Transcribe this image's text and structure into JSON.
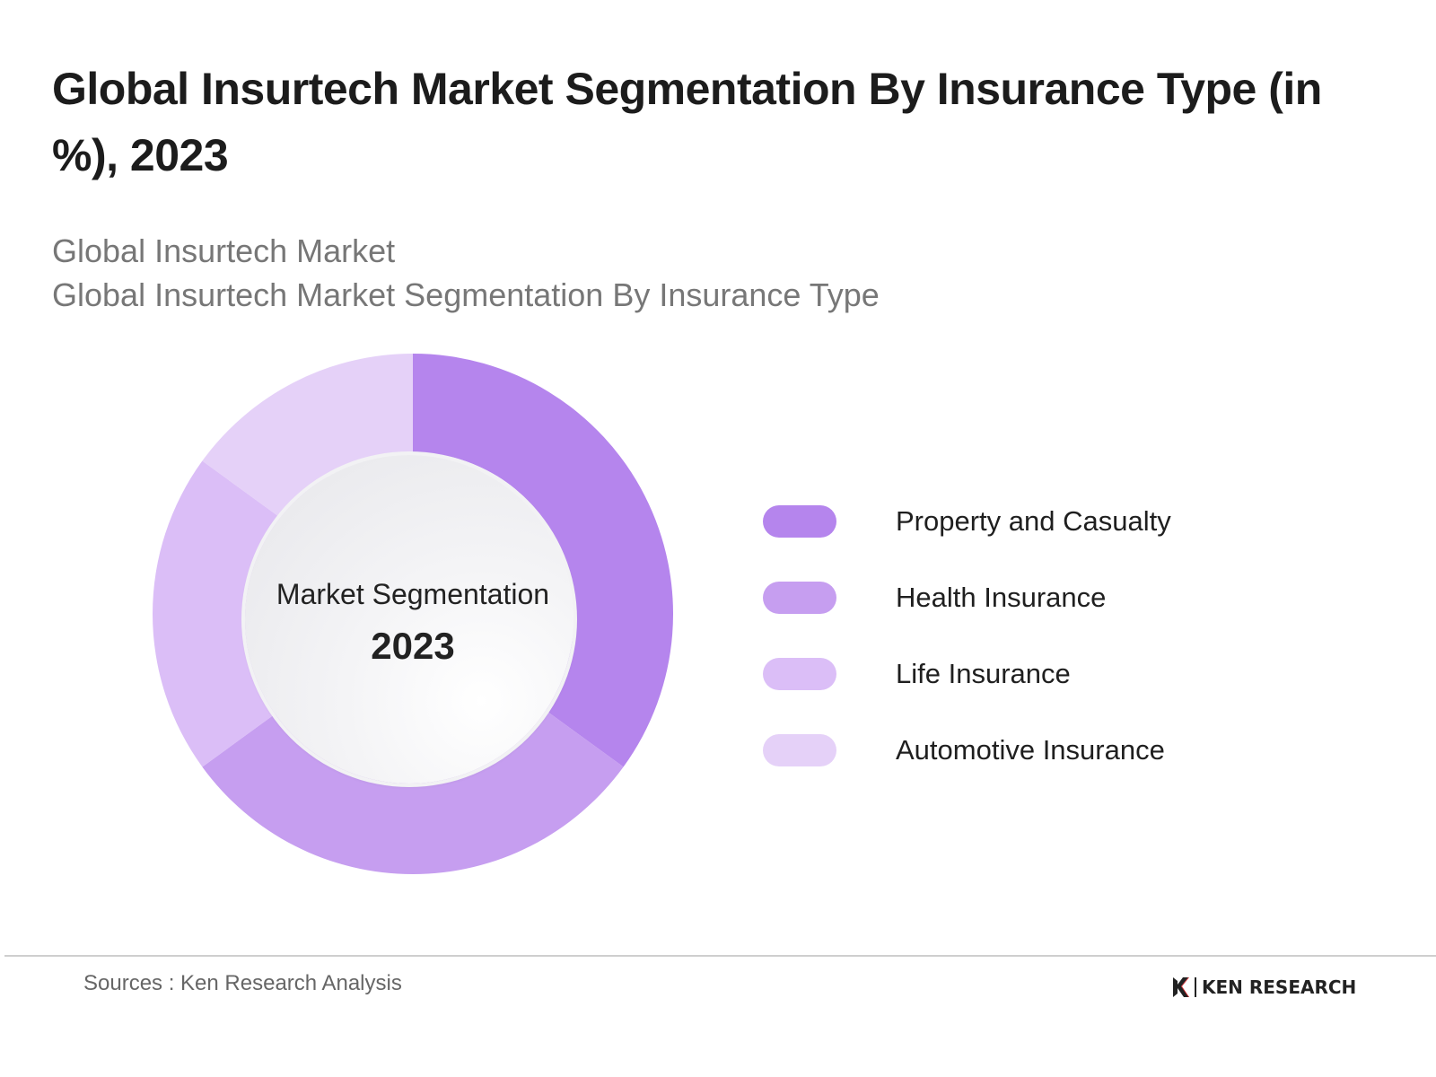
{
  "title": "Global Insurtech Market Segmentation By Insurance Type (in %), 2023",
  "subtitle_1": "Global Insurtech Market",
  "subtitle_2": "Global Insurtech Market Segmentation By Insurance Type",
  "center_label": "Market Segmentation",
  "center_year": "2023",
  "source": "Sources : Ken Research Analysis",
  "brand": "KEN RESEARCH",
  "chart_data": {
    "type": "pie",
    "donut": true,
    "title": "Global Insurtech Market Segmentation By Insurance Type (in %), 2023",
    "legend_placement": "right",
    "categories": [
      "Property and Casualty",
      "Health Insurance",
      "Life Insurance",
      "Automotive Insurance"
    ],
    "values": [
      35,
      30,
      20,
      15
    ],
    "colors": [
      "#b585ed",
      "#c69ef0",
      "#dbbef7",
      "#e5d1f8"
    ]
  }
}
